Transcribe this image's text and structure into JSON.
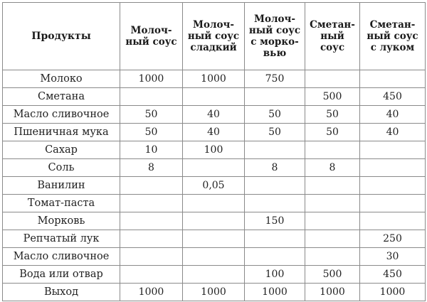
{
  "table": {
    "headers": [
      [
        "Продукты"
      ],
      [
        "Молоч-",
        "ный соус"
      ],
      [
        "Молоч-",
        "ный соус",
        "сладкий"
      ],
      [
        "Молоч-",
        "ный соус",
        "с морко-",
        "вью"
      ],
      [
        "Сметан-",
        "ный",
        "соус"
      ],
      [
        "Сметан-",
        "ный соус",
        "с луком"
      ]
    ],
    "rows": [
      [
        "Молоко",
        "1000",
        "1000",
        "750",
        "",
        ""
      ],
      [
        "Сметана",
        "",
        "",
        "",
        "500",
        "450"
      ],
      [
        "Масло сливочное",
        "50",
        "40",
        "50",
        "50",
        "40"
      ],
      [
        "Пшеничная мука",
        "50",
        "40",
        "50",
        "50",
        "40"
      ],
      [
        "Сахар",
        "10",
        "100",
        "",
        "",
        ""
      ],
      [
        "Соль",
        "8",
        "",
        "8",
        "8",
        ""
      ],
      [
        "Ванилин",
        "",
        "0,05",
        "",
        "",
        ""
      ],
      [
        "Томат-паста",
        "",
        "",
        "",
        "",
        ""
      ],
      [
        "Морковь",
        "",
        "",
        "150",
        "",
        ""
      ],
      [
        "Репчатый лук",
        "",
        "",
        "",
        "",
        "250"
      ],
      [
        "Масло сливочное",
        "",
        "",
        "",
        "",
        "30"
      ],
      [
        "Вода или отвар",
        "",
        "",
        "100",
        "500",
        "450"
      ],
      [
        "Выход",
        "1000",
        "1000",
        "1000",
        "1000",
        "1000"
      ]
    ]
  }
}
